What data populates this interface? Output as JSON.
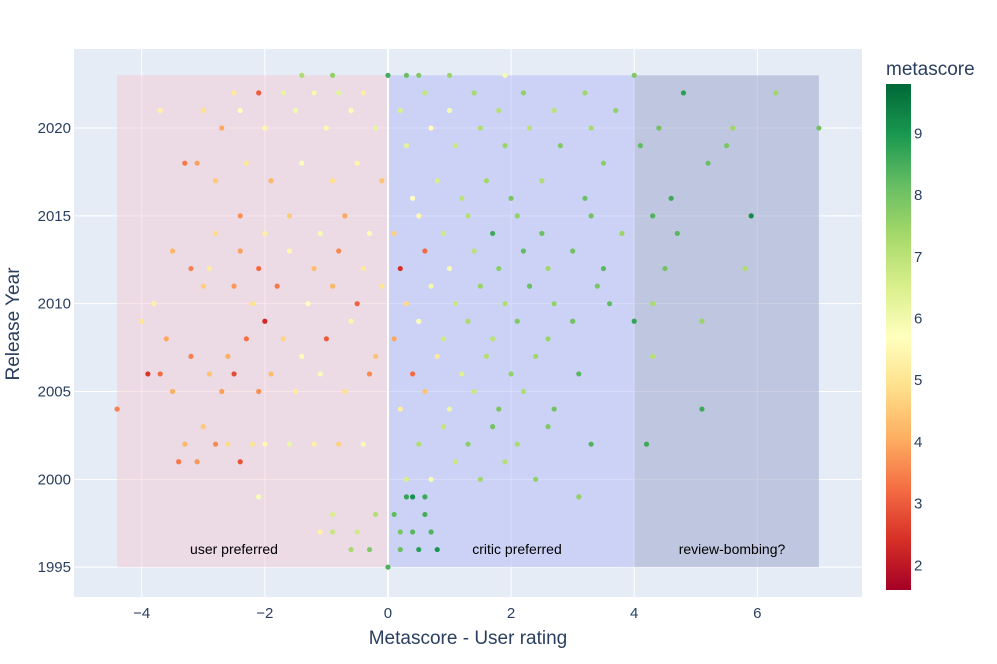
{
  "chart_data": {
    "type": "scatter",
    "xlabel": "Metascore - User rating",
    "ylabel": "Release Year",
    "xlim": [
      -5.1,
      7.7
    ],
    "ylim": [
      1993.3,
      2024.5
    ],
    "xticks": [
      -4,
      -2,
      0,
      2,
      4,
      6
    ],
    "xtick_labels": [
      "−4",
      "−2",
      "0",
      "2",
      "4",
      "6"
    ],
    "yticks": [
      1995,
      2000,
      2005,
      2010,
      2015,
      2020
    ],
    "ytick_labels": [
      "1995",
      "2000",
      "2005",
      "2010",
      "2015",
      "2020"
    ],
    "grid": true,
    "colorbar": {
      "title": "metascore",
      "range": [
        1.6,
        9.8
      ],
      "ticks": [
        2,
        3,
        4,
        5,
        6,
        7,
        8,
        9
      ],
      "tick_labels": [
        "2",
        "3",
        "4",
        "5",
        "6",
        "7",
        "8",
        "9"
      ],
      "colorscale": [
        "#a50026",
        "#d73027",
        "#f46d43",
        "#fdae61",
        "#fee08b",
        "#ffffbf",
        "#d9ef8b",
        "#a6d96a",
        "#66bd63",
        "#1a9850",
        "#006837"
      ]
    },
    "regions": [
      {
        "x0": -4.4,
        "x1": 0,
        "y0": 1995,
        "y1": 2023,
        "color": "#f5c6cf",
        "opacity": 0.45,
        "label": "user preferred"
      },
      {
        "x0": 0,
        "x1": 4,
        "y0": 1995,
        "y1": 2023,
        "color": "#aab4f7",
        "opacity": 0.45,
        "label": "critic preferred"
      },
      {
        "x0": 4,
        "x1": 7,
        "y0": 1995,
        "y1": 2023,
        "color": "#9a9fc8",
        "opacity": 0.5,
        "label": "review-bombing?"
      }
    ],
    "zero_line_x": 0,
    "points": [
      [
        -4.4,
        2004,
        3.5
      ],
      [
        -3.4,
        2001,
        3.4
      ],
      [
        -3.3,
        2002,
        4.2
      ],
      [
        -3.1,
        2001,
        3.8
      ],
      [
        -3.0,
        2003,
        4.5
      ],
      [
        -2.8,
        2002,
        3.6
      ],
      [
        -2.6,
        2002,
        4.8
      ],
      [
        -2.4,
        2001,
        2.9
      ],
      [
        -2.2,
        2002,
        5.0
      ],
      [
        -2.0,
        2002,
        5.5
      ],
      [
        -1.6,
        2002,
        6.1
      ],
      [
        -1.2,
        2002,
        5.3
      ],
      [
        -0.8,
        2002,
        4.6
      ],
      [
        -0.4,
        2002,
        5.9
      ],
      [
        -3.9,
        2006,
        2.5
      ],
      [
        -3.7,
        2006,
        3.2
      ],
      [
        -3.5,
        2005,
        4.1
      ],
      [
        -2.9,
        2006,
        4.4
      ],
      [
        -2.7,
        2005,
        3.9
      ],
      [
        -2.5,
        2006,
        2.8
      ],
      [
        -2.1,
        2005,
        3.7
      ],
      [
        -1.9,
        2006,
        4.3
      ],
      [
        -1.5,
        2005,
        5.2
      ],
      [
        -1.1,
        2006,
        5.8
      ],
      [
        -0.7,
        2005,
        4.9
      ],
      [
        -0.3,
        2006,
        3.6
      ],
      [
        -4.0,
        2009,
        5.0
      ],
      [
        -3.6,
        2008,
        4.0
      ],
      [
        -3.2,
        2007,
        3.5
      ],
      [
        -2.6,
        2007,
        4.1
      ],
      [
        -2.3,
        2008,
        3.3
      ],
      [
        -2.0,
        2009,
        2.3
      ],
      [
        -1.7,
        2008,
        4.7
      ],
      [
        -1.4,
        2007,
        5.6
      ],
      [
        -1.0,
        2008,
        3.0
      ],
      [
        -0.6,
        2009,
        5.4
      ],
      [
        -0.2,
        2007,
        4.4
      ],
      [
        -3.8,
        2010,
        5.3
      ],
      [
        -3.0,
        2011,
        4.6
      ],
      [
        -2.5,
        2011,
        3.8
      ],
      [
        -2.2,
        2010,
        4.9
      ],
      [
        -1.8,
        2011,
        3.4
      ],
      [
        -1.3,
        2010,
        5.7
      ],
      [
        -0.9,
        2011,
        4.2
      ],
      [
        -0.5,
        2010,
        3.1
      ],
      [
        -0.1,
        2011,
        5.0
      ],
      [
        -3.5,
        2013,
        4.2
      ],
      [
        -3.2,
        2012,
        3.5
      ],
      [
        -2.9,
        2012,
        5.2
      ],
      [
        -2.4,
        2013,
        3.9
      ],
      [
        -2.1,
        2012,
        3.2
      ],
      [
        -1.6,
        2013,
        5.5
      ],
      [
        -1.2,
        2012,
        4.3
      ],
      [
        -0.8,
        2013,
        3.6
      ],
      [
        -0.4,
        2012,
        5.1
      ],
      [
        -2.8,
        2014,
        4.8
      ],
      [
        -2.4,
        2015,
        3.7
      ],
      [
        -2.0,
        2014,
        5.3
      ],
      [
        -1.6,
        2015,
        4.5
      ],
      [
        -1.1,
        2014,
        5.9
      ],
      [
        -0.7,
        2015,
        4.0
      ],
      [
        -0.3,
        2014,
        5.6
      ],
      [
        -3.3,
        2018,
        3.4
      ],
      [
        -3.1,
        2018,
        3.9
      ],
      [
        -2.8,
        2017,
        4.5
      ],
      [
        -2.3,
        2018,
        5.1
      ],
      [
        -1.9,
        2017,
        4.2
      ],
      [
        -1.4,
        2018,
        5.8
      ],
      [
        -0.9,
        2017,
        4.9
      ],
      [
        -0.5,
        2018,
        5.4
      ],
      [
        -0.1,
        2017,
        4.4
      ],
      [
        -3.7,
        2021,
        5.3
      ],
      [
        -3.0,
        2021,
        4.9
      ],
      [
        -2.7,
        2020,
        4.0
      ],
      [
        -2.4,
        2021,
        5.7
      ],
      [
        -2.0,
        2020,
        5.5
      ],
      [
        -1.5,
        2021,
        6.0
      ],
      [
        -1.0,
        2020,
        5.9
      ],
      [
        -0.6,
        2021,
        5.6
      ],
      [
        -0.2,
        2020,
        6.2
      ],
      [
        -2.5,
        2022,
        5.1
      ],
      [
        -2.1,
        2022,
        3.0
      ],
      [
        -1.7,
        2022,
        6.2
      ],
      [
        -1.2,
        2022,
        5.9
      ],
      [
        -0.8,
        2022,
        6.3
      ],
      [
        -0.4,
        2022,
        5.2
      ],
      [
        -2.1,
        1999,
        5.8
      ],
      [
        -1.1,
        1997,
        5.3
      ],
      [
        -0.5,
        1997,
        6.7
      ],
      [
        -0.2,
        1998,
        7.1
      ],
      [
        -0.9,
        1998,
        6.5
      ],
      [
        -0.6,
        1996,
        7.3
      ],
      [
        -0.3,
        1996,
        7.8
      ],
      [
        -0.9,
        1997,
        6.8
      ],
      [
        -1.4,
        2023,
        7.2
      ],
      [
        -0.9,
        2023,
        7.6
      ],
      [
        0.0,
        2023,
        8.5
      ],
      [
        0.0,
        1995,
        8.4
      ],
      [
        0.2,
        1996,
        8.1
      ],
      [
        0.4,
        1997,
        8.3
      ],
      [
        0.6,
        1998,
        8.5
      ],
      [
        0.3,
        1999,
        8.7
      ],
      [
        0.6,
        1999,
        8.6
      ],
      [
        0.1,
        1998,
        8.2
      ],
      [
        0.5,
        1996,
        8.8
      ],
      [
        0.8,
        1996,
        9.0
      ],
      [
        0.7,
        1997,
        8.4
      ],
      [
        0.4,
        1999,
        9.1
      ],
      [
        0.2,
        1997,
        7.9
      ],
      [
        0.3,
        2000,
        6.5
      ],
      [
        0.7,
        2000,
        5.9
      ],
      [
        1.1,
        2001,
        6.8
      ],
      [
        1.5,
        2000,
        7.4
      ],
      [
        1.9,
        2001,
        7.1
      ],
      [
        2.4,
        2000,
        7.6
      ],
      [
        0.5,
        2002,
        7.2
      ],
      [
        0.9,
        2003,
        6.9
      ],
      [
        1.3,
        2002,
        7.7
      ],
      [
        1.7,
        2003,
        8.0
      ],
      [
        2.1,
        2002,
        7.3
      ],
      [
        2.6,
        2003,
        7.8
      ],
      [
        3.3,
        2002,
        8.4
      ],
      [
        3.1,
        1999,
        7.6
      ],
      [
        0.2,
        2004,
        5.2
      ],
      [
        0.6,
        2005,
        4.4
      ],
      [
        1.0,
        2004,
        6.1
      ],
      [
        1.4,
        2005,
        6.8
      ],
      [
        1.8,
        2004,
        7.9
      ],
      [
        2.2,
        2005,
        7.2
      ],
      [
        2.7,
        2004,
        8.0
      ],
      [
        3.1,
        2006,
        8.3
      ],
      [
        0.4,
        2006,
        3.2
      ],
      [
        0.8,
        2007,
        5.1
      ],
      [
        1.2,
        2006,
        6.4
      ],
      [
        1.6,
        2007,
        7.1
      ],
      [
        2.0,
        2006,
        7.6
      ],
      [
        2.4,
        2007,
        7.4
      ],
      [
        0.1,
        2008,
        4.0
      ],
      [
        0.5,
        2009,
        5.8
      ],
      [
        0.9,
        2008,
        6.7
      ],
      [
        1.3,
        2009,
        7.3
      ],
      [
        1.7,
        2008,
        7.0
      ],
      [
        2.1,
        2009,
        7.8
      ],
      [
        2.6,
        2008,
        7.5
      ],
      [
        3.0,
        2009,
        8.0
      ],
      [
        0.3,
        2010,
        4.8
      ],
      [
        0.7,
        2011,
        6.0
      ],
      [
        1.1,
        2010,
        6.8
      ],
      [
        1.5,
        2011,
        7.5
      ],
      [
        1.9,
        2010,
        7.2
      ],
      [
        2.3,
        2011,
        8.1
      ],
      [
        2.7,
        2010,
        7.6
      ],
      [
        3.4,
        2011,
        7.9
      ],
      [
        3.6,
        2010,
        8.2
      ],
      [
        0.2,
        2012,
        2.4
      ],
      [
        0.6,
        2013,
        3.2
      ],
      [
        1.0,
        2012,
        5.9
      ],
      [
        1.4,
        2013,
        7.0
      ],
      [
        1.8,
        2012,
        7.7
      ],
      [
        2.2,
        2013,
        8.2
      ],
      [
        2.6,
        2012,
        7.4
      ],
      [
        3.0,
        2013,
        8.0
      ],
      [
        3.5,
        2012,
        8.3
      ],
      [
        0.1,
        2014,
        4.6
      ],
      [
        0.5,
        2015,
        5.5
      ],
      [
        0.9,
        2014,
        6.7
      ],
      [
        1.3,
        2015,
        7.1
      ],
      [
        1.7,
        2014,
        8.6
      ],
      [
        2.1,
        2015,
        7.6
      ],
      [
        2.5,
        2014,
        8.1
      ],
      [
        3.3,
        2015,
        8.0
      ],
      [
        3.8,
        2014,
        7.5
      ],
      [
        0.4,
        2016,
        5.7
      ],
      [
        0.8,
        2017,
        6.5
      ],
      [
        1.2,
        2016,
        7.0
      ],
      [
        1.6,
        2017,
        7.4
      ],
      [
        2.0,
        2016,
        7.9
      ],
      [
        2.5,
        2017,
        7.2
      ],
      [
        3.2,
        2016,
        8.1
      ],
      [
        3.5,
        2018,
        7.7
      ],
      [
        0.3,
        2019,
        6.3
      ],
      [
        0.7,
        2020,
        5.6
      ],
      [
        1.1,
        2019,
        6.8
      ],
      [
        1.5,
        2020,
        7.2
      ],
      [
        1.9,
        2019,
        7.5
      ],
      [
        2.3,
        2020,
        7.0
      ],
      [
        2.8,
        2019,
        7.8
      ],
      [
        3.3,
        2020,
        7.3
      ],
      [
        3.7,
        2021,
        7.6
      ],
      [
        0.2,
        2021,
        6.5
      ],
      [
        0.6,
        2022,
        6.9
      ],
      [
        1.0,
        2021,
        5.9
      ],
      [
        1.4,
        2022,
        7.3
      ],
      [
        1.8,
        2021,
        7.1
      ],
      [
        2.2,
        2022,
        7.6
      ],
      [
        2.7,
        2021,
        7.0
      ],
      [
        3.2,
        2022,
        7.4
      ],
      [
        0.3,
        2023,
        8.1
      ],
      [
        0.5,
        2023,
        7.8
      ],
      [
        1.0,
        2023,
        7.5
      ],
      [
        1.9,
        2023,
        5.9
      ],
      [
        4.2,
        2002,
        8.6
      ],
      [
        4.3,
        2015,
        8.4
      ],
      [
        4.5,
        2012,
        8.0
      ],
      [
        4.6,
        2016,
        8.6
      ],
      [
        4.1,
        2019,
        8.2
      ],
      [
        4.4,
        2020,
        8.0
      ],
      [
        4.8,
        2022,
        8.8
      ],
      [
        5.1,
        2004,
        8.6
      ],
      [
        5.1,
        2009,
        7.5
      ],
      [
        5.2,
        2018,
        8.1
      ],
      [
        5.5,
        2019,
        7.9
      ],
      [
        5.6,
        2020,
        7.4
      ],
      [
        5.9,
        2015,
        9.2
      ],
      [
        5.8,
        2012,
        7.2
      ],
      [
        6.3,
        2022,
        7.4
      ],
      [
        7.0,
        2020,
        8.0
      ],
      [
        4.3,
        2007,
        7.1
      ],
      [
        4.0,
        2009,
        8.7
      ],
      [
        4.3,
        2010,
        7.3
      ],
      [
        4.7,
        2014,
        8.3
      ],
      [
        4.0,
        2023,
        7.8
      ]
    ]
  }
}
